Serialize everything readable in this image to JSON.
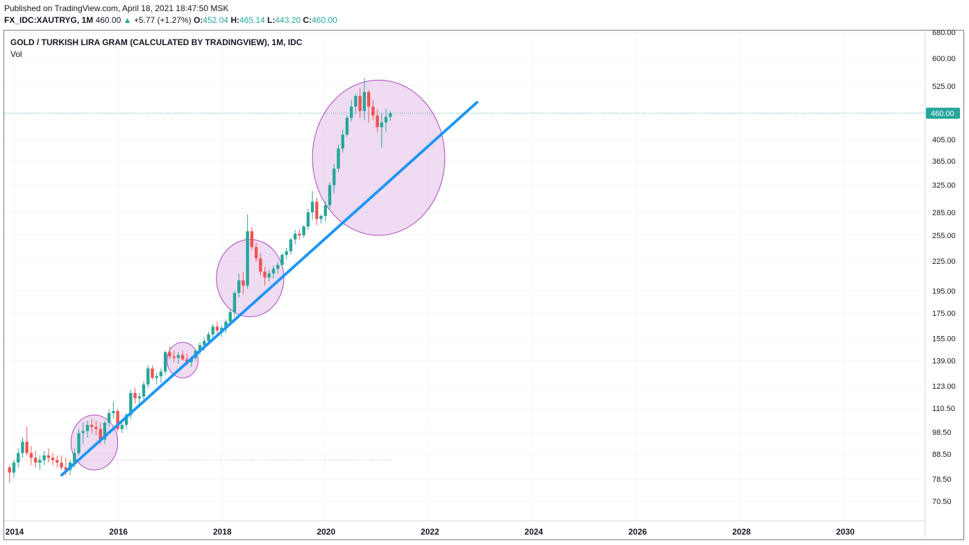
{
  "header": {
    "published": "Published on TradingView.com, April 18, 2021 18:47:50 MSK",
    "symbol": "FX_IDC:XAUTRYG, 1M",
    "last": "460.00",
    "arrow": "▲",
    "change": "+5.77 (+1.27%)",
    "open_label": "O:",
    "open": "452.04",
    "high_label": "H:",
    "high": "465.14",
    "low_label": "L:",
    "low": "443.20",
    "close_label": "C:",
    "close": "460.00"
  },
  "legend": {
    "title": "GOLD / TURKISH LIRA GRAM (CALCULATED BY TRADINGVIEW), 1M, IDC",
    "vol": "Vol"
  },
  "colors": {
    "up": "#26a69a",
    "down": "#ef5350",
    "trendline": "#2196f3",
    "highlight_fill": "#e1bee7",
    "highlight_stroke": "#ab47bc",
    "price_tag": "#26a69a",
    "grid": "#f0f3fa"
  },
  "chart_data": {
    "type": "candlestick",
    "title": "GOLD / TURKISH LIRA GRAM (CALCULATED BY TRADINGVIEW), 1M, IDC",
    "y_scale": "log",
    "ylim": [
      66,
      680
    ],
    "xlim": [
      2014.0,
      2031.6
    ],
    "y_ticks": [
      "680.00",
      "600.00",
      "525.00",
      "405.00",
      "365.00",
      "325.00",
      "285.00",
      "255.00",
      "225.00",
      "195.00",
      "175.00",
      "155.00",
      "139.00",
      "123.00",
      "110.50",
      "98.50",
      "88.50",
      "78.50",
      "70.50"
    ],
    "x_ticks": [
      "2014",
      "2016",
      "2018",
      "2020",
      "2022",
      "2024",
      "2026",
      "2028",
      "2030"
    ],
    "last_price": 460.0,
    "last_price_label": "460.00",
    "candles": [
      [
        83,
        84,
        77,
        81
      ],
      [
        81,
        86,
        79,
        85
      ],
      [
        85,
        91,
        83,
        89
      ],
      [
        89,
        96,
        87,
        94
      ],
      [
        94,
        101,
        88,
        89
      ],
      [
        89,
        92,
        84,
        87
      ],
      [
        87,
        90,
        83,
        85
      ],
      [
        85,
        88,
        82,
        86
      ],
      [
        86,
        90,
        84,
        88
      ],
      [
        88,
        91,
        85,
        87
      ],
      [
        87,
        89,
        84,
        86
      ],
      [
        86,
        88,
        83,
        85
      ],
      [
        85,
        88,
        82,
        83
      ],
      [
        83,
        87,
        80,
        82
      ],
      [
        82,
        86,
        80,
        85
      ],
      [
        85,
        91,
        83,
        89
      ],
      [
        89,
        100,
        88,
        98
      ],
      [
        98,
        103,
        93,
        99
      ],
      [
        99,
        104,
        96,
        102
      ],
      [
        102,
        105,
        98,
        101
      ],
      [
        101,
        104,
        97,
        100
      ],
      [
        100,
        103,
        93,
        95
      ],
      [
        95,
        104,
        93,
        103
      ],
      [
        103,
        110,
        101,
        108
      ],
      [
        108,
        114,
        105,
        109
      ],
      [
        109,
        110,
        99,
        100
      ],
      [
        100,
        104,
        98,
        102
      ],
      [
        102,
        108,
        100,
        107
      ],
      [
        107,
        121,
        105,
        119
      ],
      [
        119,
        122,
        113,
        116
      ],
      [
        116,
        119,
        112,
        117
      ],
      [
        117,
        126,
        114,
        124
      ],
      [
        124,
        136,
        122,
        134
      ],
      [
        134,
        136,
        127,
        128
      ],
      [
        128,
        131,
        124,
        129
      ],
      [
        129,
        134,
        125,
        132
      ],
      [
        132,
        146,
        130,
        145
      ],
      [
        145,
        149,
        140,
        142
      ],
      [
        142,
        146,
        138,
        141
      ],
      [
        141,
        145,
        137,
        143
      ],
      [
        143,
        146,
        139,
        140
      ],
      [
        140,
        144,
        136,
        138
      ],
      [
        138,
        142,
        135,
        141
      ],
      [
        141,
        147,
        139,
        146
      ],
      [
        146,
        152,
        143,
        150
      ],
      [
        150,
        155,
        146,
        153
      ],
      [
        153,
        160,
        150,
        158
      ],
      [
        158,
        166,
        155,
        164
      ],
      [
        164,
        168,
        159,
        161
      ],
      [
        161,
        165,
        156,
        163
      ],
      [
        163,
        170,
        159,
        168
      ],
      [
        168,
        178,
        165,
        176
      ],
      [
        176,
        195,
        172,
        193
      ],
      [
        193,
        212,
        189,
        205
      ],
      [
        205,
        213,
        192,
        200
      ],
      [
        200,
        282,
        197,
        260
      ],
      [
        260,
        265,
        238,
        241
      ],
      [
        241,
        246,
        224,
        228
      ],
      [
        228,
        234,
        210,
        214
      ],
      [
        214,
        219,
        200,
        208
      ],
      [
        208,
        216,
        204,
        212
      ],
      [
        212,
        220,
        207,
        217
      ],
      [
        217,
        224,
        212,
        221
      ],
      [
        221,
        234,
        219,
        232
      ],
      [
        232,
        240,
        227,
        236
      ],
      [
        236,
        252,
        232,
        250
      ],
      [
        250,
        262,
        244,
        257
      ],
      [
        257,
        262,
        250,
        255
      ],
      [
        255,
        268,
        252,
        266
      ],
      [
        266,
        290,
        262,
        285
      ],
      [
        285,
        316,
        275,
        300
      ],
      [
        300,
        306,
        268,
        276
      ],
      [
        276,
        282,
        270,
        280
      ],
      [
        280,
        300,
        272,
        295
      ],
      [
        295,
        330,
        290,
        325
      ],
      [
        325,
        360,
        312,
        352
      ],
      [
        352,
        395,
        346,
        388
      ],
      [
        388,
        425,
        380,
        415
      ],
      [
        415,
        455,
        410,
        450
      ],
      [
        450,
        490,
        442,
        475
      ],
      [
        475,
        505,
        460,
        500
      ],
      [
        500,
        520,
        450,
        465
      ],
      [
        465,
        545,
        445,
        510
      ],
      [
        510,
        515,
        440,
        475
      ],
      [
        475,
        490,
        445,
        455
      ],
      [
        455,
        470,
        420,
        430
      ],
      [
        430,
        460,
        390,
        440
      ],
      [
        440,
        470,
        420,
        452
      ],
      [
        452,
        465,
        443,
        460
      ]
    ],
    "trendline": {
      "from": {
        "x": 2014.92,
        "y": 80
      },
      "to": {
        "x": 2022.92,
        "y": 485
      }
    },
    "highlight_ovals": [
      {
        "x_from": 2015.1,
        "x_to": 2016.0,
        "y_from": 82,
        "y_to": 107
      },
      {
        "x_from": 2016.95,
        "x_to": 2017.55,
        "y_from": 128,
        "y_to": 152
      },
      {
        "x_from": 2017.9,
        "x_to": 2019.2,
        "y_from": 172,
        "y_to": 250
      },
      {
        "x_from": 2019.75,
        "x_to": 2022.3,
        "y_from": 255,
        "y_to": 540
      }
    ],
    "base_dotted_line": {
      "x_from": 2014.0,
      "x_to": 2021.3,
      "y": 86
    }
  }
}
